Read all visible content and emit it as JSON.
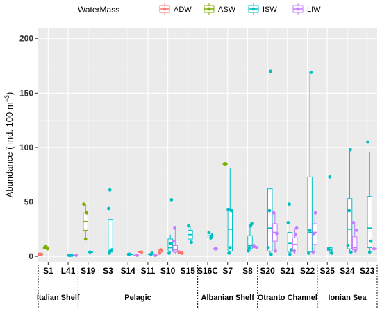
{
  "chart_data": {
    "type": "box",
    "ylabel": "Abundance ( ind. 100 m",
    "ylabel_sup": "−3",
    "ylabel_close": ")",
    "ylim": [
      -5,
      210
    ],
    "yticks": [
      0,
      50,
      100,
      150,
      200
    ],
    "grid": true,
    "legend": {
      "title": "WaterMass",
      "position": "top",
      "entries": [
        {
          "key": "ADW",
          "label": "ADW",
          "color": "#F8766D"
        },
        {
          "key": "ASW",
          "label": "ASW",
          "color": "#7CAE00"
        },
        {
          "key": "ISW",
          "label": "ISW",
          "color": "#00BFC4"
        },
        {
          "key": "LIW",
          "label": "LIW",
          "color": "#C77CFF"
        }
      ]
    },
    "categories": [
      "S1",
      "L41",
      "S19",
      "S3",
      "S14",
      "S11",
      "S10",
      "S15",
      "S16C",
      "S7",
      "S8",
      "S20",
      "S21",
      "S22",
      "S25",
      "S24",
      "S23"
    ],
    "groups": [
      {
        "label": "Italian Shelf",
        "from": 0,
        "to": 1
      },
      {
        "label": "Pelagic",
        "from": 2,
        "to": 7
      },
      {
        "label": "Albanian Shelf",
        "from": 8,
        "to": 10
      },
      {
        "label": "Otranto Channel",
        "from": 11,
        "to": 13
      },
      {
        "label": "Ionian Sea",
        "from": 14,
        "to": 16
      }
    ],
    "boxes": [
      {
        "cat": 0,
        "mass": "ADW",
        "q1": 2,
        "median": 2,
        "q3": 2,
        "wlo": 2,
        "whi": 2,
        "points": [
          2,
          2,
          2
        ]
      },
      {
        "cat": 0,
        "mass": "ASW",
        "q1": 7,
        "median": 7,
        "q3": 9,
        "wlo": 7,
        "whi": 9,
        "points": [
          7,
          8,
          9
        ]
      },
      {
        "cat": 1,
        "mass": "ISW",
        "q1": 1,
        "median": 1,
        "q3": 1,
        "wlo": 1,
        "whi": 1,
        "points": [
          1,
          1,
          1
        ]
      },
      {
        "cat": 1,
        "mass": "LIW",
        "q1": 1,
        "median": 1,
        "q3": 1,
        "wlo": 1,
        "whi": 1,
        "points": [
          1
        ]
      },
      {
        "cat": 2,
        "mass": "ASW",
        "q1": 24,
        "median": 32,
        "q3": 40,
        "wlo": 16,
        "whi": 48,
        "points": [
          16,
          40,
          48
        ]
      },
      {
        "cat": 2,
        "mass": "ISW",
        "q1": 4,
        "median": 4,
        "q3": 4,
        "wlo": 4,
        "whi": 4,
        "points": [
          4
        ]
      },
      {
        "cat": 3,
        "mass": "ISW",
        "q1": 4,
        "median": 5,
        "q3": 34,
        "wlo": 3,
        "whi": 34,
        "points": [
          3,
          5,
          6,
          44,
          61
        ]
      },
      {
        "cat": 4,
        "mass": "ISW",
        "q1": 2,
        "median": 2,
        "q3": 2,
        "wlo": 2,
        "whi": 2,
        "points": [
          2,
          2
        ]
      },
      {
        "cat": 4,
        "mass": "LIW",
        "q1": 1,
        "median": 1,
        "q3": 1,
        "wlo": 1,
        "whi": 1,
        "points": [
          1
        ]
      },
      {
        "cat": 5,
        "mass": "ADW",
        "q1": 4,
        "median": 4,
        "q3": 4,
        "wlo": 4,
        "whi": 4,
        "points": [
          4
        ]
      },
      {
        "cat": 5,
        "mass": "ISW",
        "q1": 2,
        "median": 2,
        "q3": 2,
        "wlo": 2,
        "whi": 2,
        "points": [
          2,
          3
        ]
      },
      {
        "cat": 5,
        "mass": "LIW",
        "q1": 1,
        "median": 1,
        "q3": 1,
        "wlo": 1,
        "whi": 1,
        "points": [
          1
        ]
      },
      {
        "cat": 6,
        "mass": "ADW",
        "q1": 4,
        "median": 5,
        "q3": 6,
        "wlo": 3,
        "whi": 7,
        "points": [
          3,
          6
        ]
      },
      {
        "cat": 6,
        "mass": "ISW",
        "q1": 5,
        "median": 8,
        "q3": 16,
        "wlo": 3,
        "whi": 20,
        "points": [
          3,
          12,
          52
        ]
      },
      {
        "cat": 6,
        "mass": "LIW",
        "q1": 4,
        "median": 6,
        "q3": 10,
        "wlo": 2,
        "whi": 26,
        "points": [
          14,
          26
        ]
      },
      {
        "cat": 7,
        "mass": "ADW",
        "q1": 3,
        "median": 3,
        "q3": 3,
        "wlo": 3,
        "whi": 3,
        "points": [
          3,
          4
        ]
      },
      {
        "cat": 7,
        "mass": "ISW",
        "q1": 16,
        "median": 20,
        "q3": 24,
        "wlo": 13,
        "whi": 28,
        "points": [
          13,
          28
        ]
      },
      {
        "cat": 8,
        "mass": "ISW",
        "q1": 17,
        "median": 19,
        "q3": 21,
        "wlo": 17,
        "whi": 22,
        "points": [
          17,
          19,
          22
        ]
      },
      {
        "cat": 8,
        "mass": "LIW",
        "q1": 7,
        "median": 7,
        "q3": 7,
        "wlo": 7,
        "whi": 7,
        "points": [
          7,
          7
        ]
      },
      {
        "cat": 9,
        "mass": "ASW",
        "q1": 85,
        "median": 85,
        "q3": 85,
        "wlo": 85,
        "whi": 85,
        "points": [
          85,
          85
        ]
      },
      {
        "cat": 9,
        "mass": "ISW",
        "q1": 5,
        "median": 25,
        "q3": 43,
        "wlo": 3,
        "whi": 81,
        "points": [
          3,
          8,
          42,
          43
        ]
      },
      {
        "cat": 10,
        "mass": "ISW",
        "q1": 7,
        "median": 10,
        "q3": 19,
        "wlo": 5,
        "whi": 30,
        "points": [
          5,
          8,
          28,
          30
        ]
      },
      {
        "cat": 10,
        "mass": "LIW",
        "q1": 8,
        "median": 9,
        "q3": 9,
        "wlo": 8,
        "whi": 10,
        "points": [
          8,
          10
        ]
      },
      {
        "cat": 11,
        "mass": "ISW",
        "q1": 5,
        "median": 26,
        "q3": 62,
        "wlo": 2,
        "whi": 62,
        "points": [
          2,
          8,
          42,
          170
        ]
      },
      {
        "cat": 11,
        "mass": "LIW",
        "q1": 14,
        "median": 22,
        "q3": 30,
        "wlo": 5,
        "whi": 40,
        "points": [
          5,
          21,
          40
        ]
      },
      {
        "cat": 12,
        "mass": "ISW",
        "q1": 4,
        "median": 12,
        "q3": 22,
        "wlo": 2,
        "whi": 31,
        "points": [
          2,
          6,
          31,
          48
        ]
      },
      {
        "cat": 12,
        "mass": "LIW",
        "q1": 5,
        "median": 11,
        "q3": 17,
        "wlo": 2,
        "whi": 26,
        "points": [
          5,
          20,
          26
        ]
      },
      {
        "cat": 13,
        "mass": "ISW",
        "q1": 4,
        "median": 22,
        "q3": 73,
        "wlo": 3,
        "whi": 169,
        "points": [
          3,
          24,
          169
        ]
      },
      {
        "cat": 13,
        "mass": "LIW",
        "q1": 11,
        "median": 22,
        "q3": 30,
        "wlo": 4,
        "whi": 40,
        "points": [
          4,
          21,
          40
        ]
      },
      {
        "cat": 14,
        "mass": "ISW",
        "q1": 5,
        "median": 6,
        "q3": 8,
        "wlo": 3,
        "whi": 9,
        "points": [
          3,
          7,
          73
        ]
      },
      {
        "cat": 15,
        "mass": "ISW",
        "q1": 7,
        "median": 25,
        "q3": 53,
        "wlo": 4,
        "whi": 97,
        "points": [
          4,
          10,
          42,
          98
        ]
      },
      {
        "cat": 15,
        "mass": "LIW",
        "q1": 6,
        "median": 8,
        "q3": 18,
        "wlo": 5,
        "whi": 31,
        "points": [
          5,
          24,
          31
        ]
      },
      {
        "cat": 16,
        "mass": "ISW",
        "q1": 8,
        "median": 26,
        "q3": 55,
        "wlo": 4,
        "whi": 96,
        "points": [
          4,
          14,
          105
        ]
      },
      {
        "cat": 16,
        "mass": "LIW",
        "q1": 7,
        "median": 7,
        "q3": 7,
        "wlo": 7,
        "whi": 7,
        "points": [
          7
        ]
      }
    ]
  }
}
